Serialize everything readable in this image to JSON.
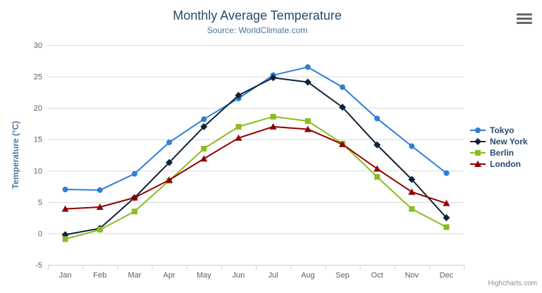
{
  "chart_data": {
    "type": "line",
    "title": "Monthly Average Temperature",
    "subtitle": "Source: WorldClimate.com",
    "categories": [
      "Jan",
      "Feb",
      "Mar",
      "Apr",
      "May",
      "Jun",
      "Jul",
      "Aug",
      "Sep",
      "Oct",
      "Nov",
      "Dec"
    ],
    "xlabel": "",
    "ylabel": "Temperature (°C)",
    "ylim": [
      -5,
      30
    ],
    "yticks": [
      -5,
      0,
      5,
      10,
      15,
      20,
      25,
      30
    ],
    "grid": true,
    "legend_position": "right",
    "series": [
      {
        "name": "Tokyo",
        "color": "#2f7ed8",
        "marker": "circle",
        "values": [
          7.0,
          6.9,
          9.5,
          14.5,
          18.2,
          21.5,
          25.2,
          26.5,
          23.3,
          18.3,
          13.9,
          9.6
        ]
      },
      {
        "name": "New York",
        "color": "#0d233a",
        "marker": "diamond",
        "values": [
          -0.2,
          0.8,
          5.7,
          11.3,
          17.0,
          22.0,
          24.8,
          24.1,
          20.1,
          14.1,
          8.6,
          2.5
        ]
      },
      {
        "name": "Berlin",
        "color": "#8bbc21",
        "marker": "square",
        "values": [
          -0.9,
          0.6,
          3.5,
          8.4,
          13.5,
          17.0,
          18.6,
          17.9,
          14.3,
          9.0,
          3.9,
          1.0
        ]
      },
      {
        "name": "London",
        "color": "#910000",
        "marker": "triangle",
        "values": [
          3.9,
          4.2,
          5.7,
          8.5,
          11.9,
          15.2,
          17.0,
          16.6,
          14.2,
          10.3,
          6.6,
          4.8
        ]
      }
    ]
  },
  "colors": {
    "title": "#274b6d",
    "subtitle": "#4d759e",
    "axis_title": "#4d759e",
    "tick_label": "#606060",
    "grid_line": "#d8d8d8",
    "axis_line": "#c0d0e0",
    "legend_text": "#274b6d",
    "credits": "#909090",
    "menu_icon": "#666666"
  },
  "credits": "Highcharts.com",
  "export_menu": {
    "icon": "hamburger-icon"
  }
}
